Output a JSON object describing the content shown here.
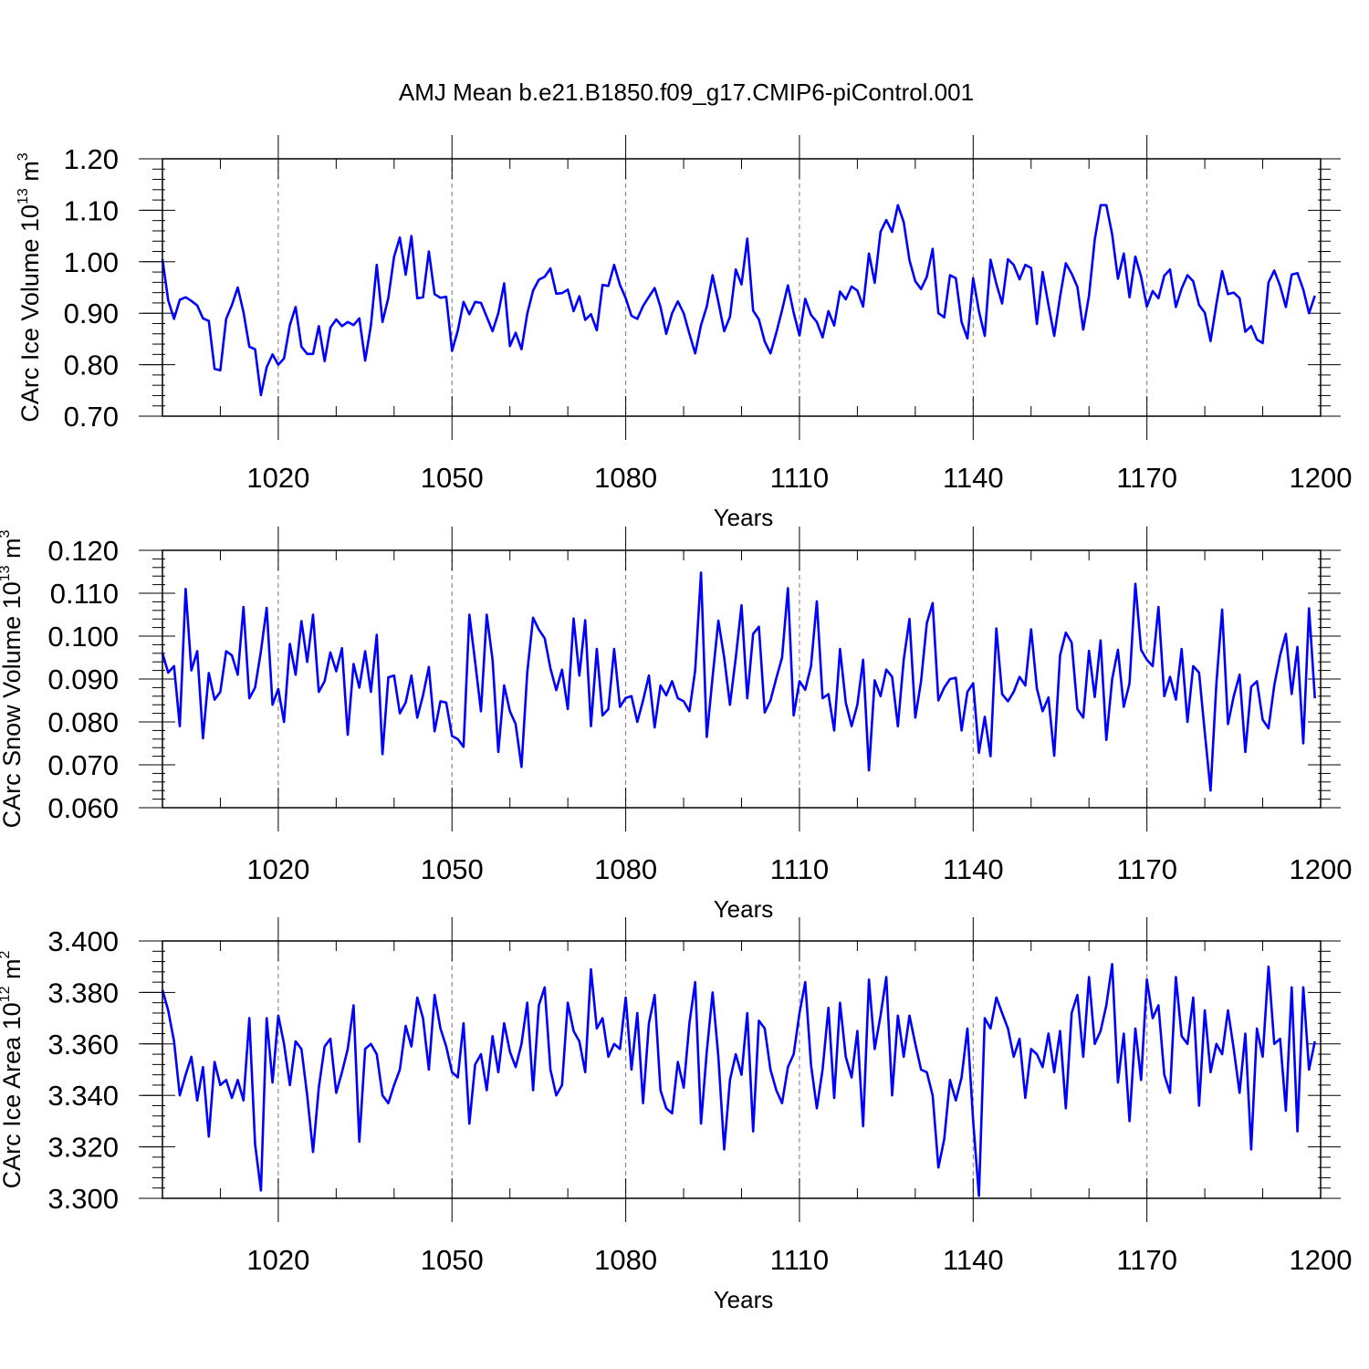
{
  "figure": {
    "title": "AMJ Mean b.e21.B1850.f09_g17.CMIP6-piControl.001",
    "line_color": "#0000ff"
  },
  "chart_data": [
    {
      "type": "line",
      "ylabel": {
        "text": "CArc Ice Volume 10",
        "sup": "13",
        "unit": " m",
        "unit_sup": "3"
      },
      "xlabel": "Years",
      "xlim": [
        1000,
        1200
      ],
      "ylim": [
        0.7,
        1.2
      ],
      "yticks": [
        "0.70",
        "0.80",
        "0.90",
        "1.00",
        "1.10",
        "1.20"
      ],
      "xticks": [
        "1020",
        "1050",
        "1080",
        "1110",
        "1140",
        "1170",
        "1200"
      ],
      "grid": "vertical-dashed",
      "x_start": 1000,
      "values": [
        1.005,
        0.925,
        0.889,
        0.926,
        0.931,
        0.924,
        0.915,
        0.89,
        0.885,
        0.792,
        0.789,
        0.889,
        0.916,
        0.95,
        0.902,
        0.835,
        0.83,
        0.741,
        0.795,
        0.82,
        0.8,
        0.812,
        0.877,
        0.912,
        0.835,
        0.821,
        0.821,
        0.875,
        0.807,
        0.872,
        0.888,
        0.875,
        0.883,
        0.877,
        0.89,
        0.808,
        0.876,
        0.994,
        0.883,
        0.93,
        1.01,
        1.047,
        0.975,
        1.05,
        0.929,
        0.931,
        1.02,
        0.937,
        0.93,
        0.932,
        0.827,
        0.866,
        0.922,
        0.898,
        0.922,
        0.92,
        0.893,
        0.865,
        0.9,
        0.958,
        0.836,
        0.862,
        0.83,
        0.899,
        0.944,
        0.965,
        0.971,
        0.987,
        0.938,
        0.939,
        0.946,
        0.904,
        0.933,
        0.887,
        0.898,
        0.867,
        0.955,
        0.953,
        0.994,
        0.955,
        0.929,
        0.895,
        0.889,
        0.914,
        0.932,
        0.949,
        0.912,
        0.86,
        0.9,
        0.923,
        0.9,
        0.86,
        0.822,
        0.877,
        0.913,
        0.974,
        0.922,
        0.865,
        0.893,
        0.985,
        0.956,
        1.045,
        0.905,
        0.888,
        0.845,
        0.822,
        0.862,
        0.906,
        0.954,
        0.901,
        0.857,
        0.928,
        0.897,
        0.883,
        0.853,
        0.904,
        0.876,
        0.942,
        0.927,
        0.952,
        0.944,
        0.913,
        1.016,
        0.959,
        1.058,
        1.081,
        1.058,
        1.11,
        1.077,
        1.003,
        0.962,
        0.947,
        0.971,
        1.025,
        0.9,
        0.892,
        0.974,
        0.968,
        0.883,
        0.851,
        0.968,
        0.904,
        0.856,
        1.004,
        0.957,
        0.919,
        1.005,
        0.994,
        0.966,
        0.994,
        0.988,
        0.879,
        0.98,
        0.916,
        0.856,
        0.932,
        0.997,
        0.977,
        0.951,
        0.868,
        0.934,
        1.043,
        1.11,
        1.11,
        1.053,
        0.967,
        1.016,
        0.931,
        1.01,
        0.971,
        0.913,
        0.943,
        0.929,
        0.973,
        0.985,
        0.912,
        0.948,
        0.974,
        0.962,
        0.916,
        0.901,
        0.846,
        0.918,
        0.982,
        0.937,
        0.94,
        0.929,
        0.864,
        0.875,
        0.849,
        0.842,
        0.96,
        0.983,
        0.953,
        0.912,
        0.975,
        0.978,
        0.946,
        0.9,
        0.934
      ]
    },
    {
      "type": "line",
      "ylabel": {
        "text": "CArc Snow Volume 10",
        "sup": "13",
        "unit": " m",
        "unit_sup": "3"
      },
      "xlabel": "Years",
      "xlim": [
        1000,
        1200
      ],
      "ylim": [
        0.06,
        0.12
      ],
      "yticks": [
        "0.060",
        "0.070",
        "0.080",
        "0.090",
        "0.100",
        "0.110",
        "0.120"
      ],
      "xticks": [
        "1020",
        "1050",
        "1080",
        "1110",
        "1140",
        "1170",
        "1200"
      ],
      "grid": "vertical-dashed",
      "x_start": 1000,
      "values": [
        0.096,
        0.0915,
        0.093,
        0.079,
        0.111,
        0.092,
        0.0965,
        0.0762,
        0.0914,
        0.0852,
        0.087,
        0.0965,
        0.0955,
        0.091,
        0.1068,
        0.0855,
        0.088,
        0.0965,
        0.1066,
        0.084,
        0.0877,
        0.08,
        0.0982,
        0.091,
        0.1035,
        0.094,
        0.105,
        0.087,
        0.0895,
        0.0962,
        0.0918,
        0.0972,
        0.077,
        0.0935,
        0.088,
        0.0965,
        0.087,
        0.1003,
        0.0725,
        0.0904,
        0.0908,
        0.082,
        0.0845,
        0.0908,
        0.081,
        0.0862,
        0.0928,
        0.0778,
        0.0848,
        0.0845,
        0.0767,
        0.076,
        0.0742,
        0.105,
        0.094,
        0.0825,
        0.105,
        0.0945,
        0.073,
        0.0885,
        0.0825,
        0.0795,
        0.0695,
        0.0915,
        0.1043,
        0.1015,
        0.0995,
        0.0925,
        0.0874,
        0.0922,
        0.083,
        0.1041,
        0.0908,
        0.1037,
        0.079,
        0.097,
        0.0815,
        0.083,
        0.097,
        0.0835,
        0.0856,
        0.086,
        0.08,
        0.085,
        0.0908,
        0.0787,
        0.0885,
        0.0862,
        0.0895,
        0.0855,
        0.0848,
        0.0825,
        0.092,
        0.1148,
        0.0765,
        0.0905,
        0.1036,
        0.095,
        0.084,
        0.095,
        0.1072,
        0.0855,
        0.1005,
        0.1022,
        0.0822,
        0.085,
        0.0902,
        0.095,
        0.1112,
        0.0815,
        0.0895,
        0.0875,
        0.093,
        0.1081,
        0.0855,
        0.0865,
        0.078,
        0.097,
        0.0845,
        0.079,
        0.084,
        0.0945,
        0.0687,
        0.0897,
        0.086,
        0.0922,
        0.0905,
        0.079,
        0.0945,
        0.104,
        0.081,
        0.0895,
        0.103,
        0.1077,
        0.085,
        0.088,
        0.09,
        0.0903,
        0.078,
        0.087,
        0.089,
        0.0728,
        0.0812,
        0.072,
        0.1018,
        0.0865,
        0.0848,
        0.087,
        0.0905,
        0.0885,
        0.1016,
        0.0878,
        0.0825,
        0.0857,
        0.0721,
        0.0955,
        0.1008,
        0.0985,
        0.083,
        0.081,
        0.0966,
        0.0858,
        0.099,
        0.0758,
        0.09,
        0.0968,
        0.0835,
        0.089,
        0.1122,
        0.0968,
        0.0945,
        0.093,
        0.1068,
        0.086,
        0.0905,
        0.0852,
        0.097,
        0.08,
        0.093,
        0.0915,
        0.0775,
        0.064,
        0.089,
        0.1062,
        0.0795,
        0.086,
        0.091,
        0.073,
        0.0882,
        0.0895,
        0.0805,
        0.0785,
        0.0885,
        0.0955,
        0.1005,
        0.0865,
        0.0975,
        0.075,
        0.1065,
        0.0855
      ]
    },
    {
      "type": "line",
      "ylabel": {
        "text": "CArc Ice Area 10",
        "sup": "12",
        "unit": " m",
        "unit_sup": "2"
      },
      "xlabel": "Years",
      "xlim": [
        1000,
        1200
      ],
      "ylim": [
        3.3,
        3.4
      ],
      "yticks": [
        "3.300",
        "3.320",
        "3.340",
        "3.360",
        "3.380",
        "3.400"
      ],
      "xticks": [
        "1020",
        "1050",
        "1080",
        "1110",
        "1140",
        "1170",
        "1200"
      ],
      "grid": "vertical-dashed",
      "x_start": 1000,
      "values": [
        3.381,
        3.373,
        3.361,
        3.34,
        3.348,
        3.355,
        3.338,
        3.351,
        3.324,
        3.353,
        3.344,
        3.346,
        3.339,
        3.346,
        3.338,
        3.37,
        3.321,
        3.303,
        3.37,
        3.345,
        3.371,
        3.36,
        3.344,
        3.361,
        3.358,
        3.34,
        3.318,
        3.343,
        3.359,
        3.362,
        3.341,
        3.349,
        3.358,
        3.375,
        3.322,
        3.358,
        3.36,
        3.356,
        3.34,
        3.337,
        3.344,
        3.35,
        3.367,
        3.359,
        3.378,
        3.37,
        3.35,
        3.379,
        3.366,
        3.359,
        3.349,
        3.347,
        3.368,
        3.329,
        3.352,
        3.356,
        3.342,
        3.363,
        3.349,
        3.368,
        3.357,
        3.351,
        3.36,
        3.376,
        3.342,
        3.375,
        3.382,
        3.35,
        3.34,
        3.344,
        3.376,
        3.365,
        3.361,
        3.349,
        3.389,
        3.366,
        3.37,
        3.355,
        3.36,
        3.358,
        3.378,
        3.35,
        3.372,
        3.337,
        3.368,
        3.379,
        3.342,
        3.335,
        3.333,
        3.353,
        3.343,
        3.368,
        3.384,
        3.329,
        3.357,
        3.38,
        3.355,
        3.319,
        3.346,
        3.356,
        3.348,
        3.372,
        3.326,
        3.369,
        3.366,
        3.35,
        3.342,
        3.337,
        3.351,
        3.356,
        3.372,
        3.384,
        3.352,
        3.335,
        3.35,
        3.374,
        3.339,
        3.376,
        3.355,
        3.347,
        3.365,
        3.328,
        3.385,
        3.358,
        3.371,
        3.386,
        3.34,
        3.371,
        3.355,
        3.371,
        3.36,
        3.35,
        3.349,
        3.34,
        3.312,
        3.323,
        3.346,
        3.338,
        3.347,
        3.366,
        3.33,
        3.301,
        3.37,
        3.366,
        3.378,
        3.372,
        3.366,
        3.355,
        3.362,
        3.339,
        3.358,
        3.356,
        3.351,
        3.364,
        3.349,
        3.365,
        3.335,
        3.372,
        3.379,
        3.355,
        3.386,
        3.36,
        3.365,
        3.375,
        3.391,
        3.345,
        3.364,
        3.33,
        3.366,
        3.346,
        3.385,
        3.37,
        3.375,
        3.348,
        3.341,
        3.386,
        3.363,
        3.36,
        3.378,
        3.336,
        3.373,
        3.349,
        3.36,
        3.356,
        3.373,
        3.358,
        3.341,
        3.364,
        3.319,
        3.366,
        3.355,
        3.39,
        3.36,
        3.362,
        3.334,
        3.382,
        3.326,
        3.382,
        3.35,
        3.361
      ]
    }
  ]
}
